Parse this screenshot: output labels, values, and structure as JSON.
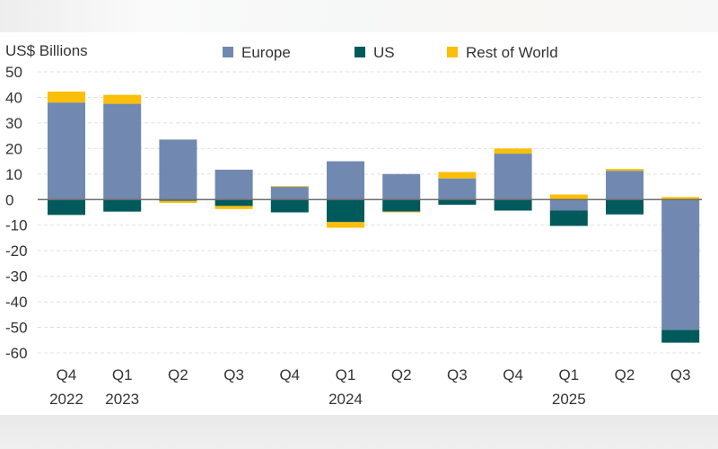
{
  "chart_data": {
    "type": "bar",
    "stacked": true,
    "title": "",
    "ylabel": "US$ Billions",
    "xlabel": "",
    "ylim": [
      -60,
      50
    ],
    "yticks": [
      50,
      40,
      30,
      20,
      10,
      0,
      -10,
      -20,
      -30,
      -40,
      -50,
      -60
    ],
    "ytick_labels": [
      "50",
      "40",
      "30",
      "20",
      "10",
      "0",
      "-10",
      "-20",
      "-30",
      "-40",
      "-50",
      "-60"
    ],
    "grid": true,
    "legend_position": "top",
    "categories": [
      "Q4 2022",
      "Q1 2023",
      "Q2 2023",
      "Q3 2023",
      "Q4 2023",
      "Q1 2024",
      "Q2 2024",
      "Q3 2024",
      "Q4 2024",
      "Q1 2025",
      "Q2 2025",
      "Q3 2025"
    ],
    "x_tick_labels": [
      {
        "quarter": "Q4",
        "year": "2022"
      },
      {
        "quarter": "Q1",
        "year": "2023"
      },
      {
        "quarter": "Q2",
        "year": ""
      },
      {
        "quarter": "Q3",
        "year": ""
      },
      {
        "quarter": "Q4",
        "year": ""
      },
      {
        "quarter": "Q1",
        "year": "2024"
      },
      {
        "quarter": "Q2",
        "year": ""
      },
      {
        "quarter": "Q3",
        "year": ""
      },
      {
        "quarter": "Q4",
        "year": ""
      },
      {
        "quarter": "Q1",
        "year": "2025"
      },
      {
        "quarter": "Q2",
        "year": ""
      },
      {
        "quarter": "Q3",
        "year": ""
      }
    ],
    "series": [
      {
        "name": "Europe",
        "color": "#7189b0",
        "values": [
          38,
          37.5,
          23.5,
          11.7,
          5,
          15,
          10,
          8.3,
          18,
          -4.3,
          11.3,
          -51
        ]
      },
      {
        "name": "US",
        "color": "#005a5b",
        "values": [
          -6,
          -4.7,
          -0.5,
          -2.5,
          -5,
          -8.8,
          -4.7,
          -2,
          -4.3,
          -6,
          -5.8,
          -5
        ]
      },
      {
        "name": "Rest of World",
        "color": "#fbbf0a",
        "values": [
          4.3,
          3.5,
          -0.8,
          -1.2,
          0.3,
          -2.2,
          -0.3,
          2.5,
          2,
          2,
          0.7,
          1
        ]
      }
    ]
  }
}
